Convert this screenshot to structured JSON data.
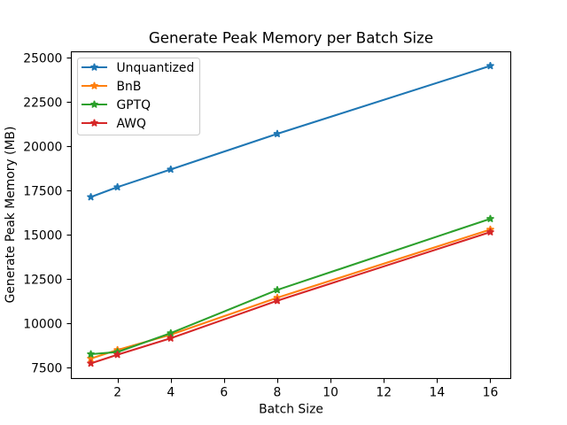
{
  "chart_data": {
    "type": "line",
    "title": "Generate Peak Memory per Batch Size",
    "xlabel": "Batch Size",
    "ylabel": "Generate Peak Memory (MB)",
    "x": [
      1,
      2,
      4,
      8,
      16
    ],
    "series": [
      {
        "name": "Unquantized",
        "color": "#1f77b4",
        "values": [
          17120,
          17680,
          18680,
          20690,
          24530
        ]
      },
      {
        "name": "BnB",
        "color": "#ff7f0e",
        "values": [
          7990,
          8480,
          9340,
          11430,
          15280
        ]
      },
      {
        "name": "GPTQ",
        "color": "#2ca02c",
        "values": [
          8240,
          8360,
          9430,
          11870,
          15890
        ]
      },
      {
        "name": "AWQ",
        "color": "#d62728",
        "values": [
          7720,
          8210,
          9140,
          11260,
          15140
        ]
      }
    ],
    "marker": "star",
    "xticks": [
      2,
      4,
      6,
      8,
      10,
      12,
      14,
      16
    ],
    "yticks": [
      7500,
      10000,
      12500,
      15000,
      17500,
      20000,
      22500,
      25000
    ],
    "xlim": [
      0.25,
      16.75
    ],
    "ylim": [
      6879.5,
      25370.5
    ],
    "grid": false,
    "legend": {
      "position": "upper-left",
      "entries": [
        "Unquantized",
        "BnB",
        "GPTQ",
        "AWQ"
      ]
    }
  },
  "style": {
    "background": "#ffffff",
    "spine_color": "#000000",
    "tick_color": "#000000",
    "legend_border": "#cccccc",
    "legend_background": "rgba(255,255,255,0.8)"
  }
}
